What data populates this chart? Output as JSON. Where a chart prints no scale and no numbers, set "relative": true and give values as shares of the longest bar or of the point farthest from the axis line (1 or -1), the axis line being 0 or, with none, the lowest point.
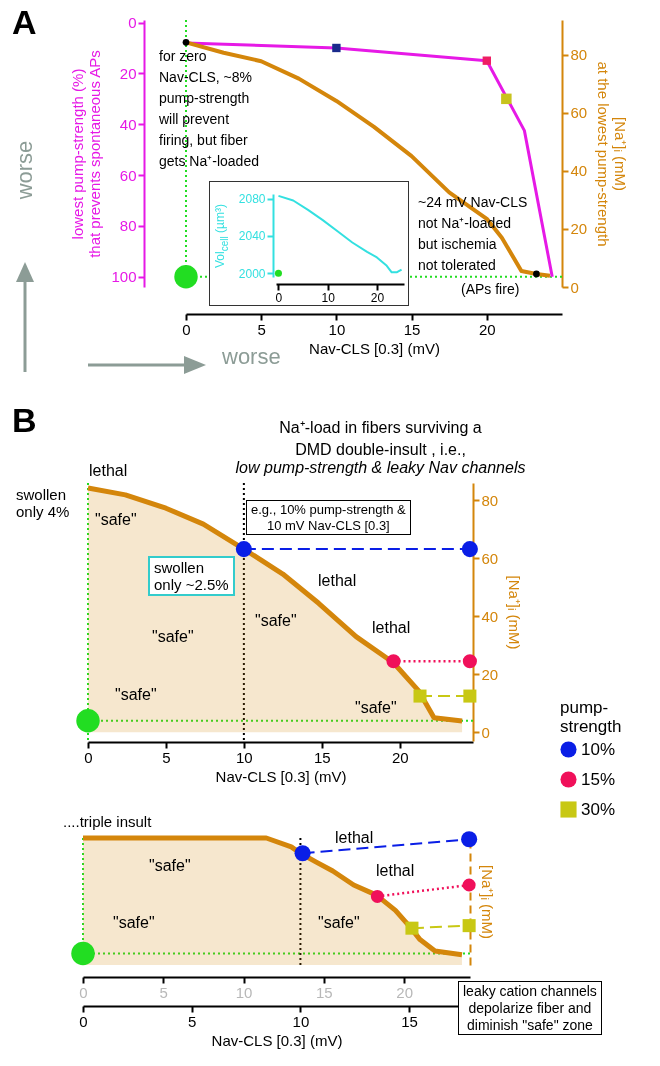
{
  "chart_data": [
    {
      "type": "line",
      "xlabel": "Nav-CLS [0.3] (mV)",
      "ylabel": "lowest pump-strength (%)\nthat prevents spontaneous APs",
      "y2label": "[Na⁺]ᵢ (mM)\nat the lowest pump-strength",
      "xlim": [
        0,
        25
      ],
      "xticks": [
        0,
        5,
        10,
        15,
        20
      ],
      "ylim": [
        104,
        -1
      ],
      "yticks": [
        0,
        20,
        40,
        60,
        80,
        100
      ],
      "y2lim": [
        0,
        92
      ],
      "y2ticks": [
        0,
        20,
        40,
        60,
        80
      ],
      "grid": false,
      "legend": false,
      "series": [
        {
          "color": "#e619e6",
          "axis": "y",
          "x": [
            0,
            10,
            20,
            22.5,
            24.35
          ],
          "values": [
            8,
            10,
            15,
            42.5,
            100
          ]
        },
        {
          "type": "scatter",
          "axis": "y",
          "x": [
            10
          ],
          "values": [
            10
          ],
          "color": "#1a2a8c",
          "marker": "square"
        },
        {
          "type": "scatter",
          "axis": "y",
          "x": [
            20
          ],
          "values": [
            15
          ],
          "color": "#ee1e64",
          "marker": "square"
        },
        {
          "type": "scatter",
          "axis": "y",
          "x": [
            21.3
          ],
          "values": [
            30
          ],
          "color": "#c8c31e",
          "marker": "square"
        },
        {
          "color": "#d4860b",
          "axis": "y2",
          "x": [
            0,
            2.5,
            5,
            7.5,
            10,
            12.5,
            15,
            17.5,
            20,
            21,
            22.3,
            23.3,
            24.2
          ],
          "values": [
            84.3,
            80.7,
            77.8,
            71.8,
            64.1,
            55.2,
            45.1,
            32.6,
            23.5,
            17,
            5.5,
            4.5,
            3.9
          ]
        },
        {
          "type": "scatter",
          "axis": "y2",
          "x": [
            0,
            23.3
          ],
          "values": [
            84.3,
            4.5
          ],
          "color": "#000000",
          "marker": "circle"
        },
        {
          "type": "scatter",
          "axis": "y",
          "x": [
            0
          ],
          "values": [
            100
          ],
          "color": "#22dd22",
          "marker": "circle"
        }
      ],
      "ref_lines": [
        {
          "axis": "x",
          "value": 0,
          "color": "#22dd22",
          "line_style": "dotted"
        },
        {
          "axis": "y",
          "value": 100,
          "color": "#22dd22",
          "line_style": "dotted"
        }
      ],
      "annotations": [
        "A",
        "for zero\nNav-CLS, ~8%\npump-strength\nwill prevent\nfiring, but fiber\ngets Na⁺-loaded",
        "~24 mV Nav-CLS\nnot Na⁺-loaded\nbut ischemia\nnot tolerated",
        "(APs fire)",
        "worse",
        "worse"
      ]
    },
    {
      "type": "line",
      "ylabel": "Vol$_{cell}$ (µm³)",
      "xlim": [
        -0.5,
        25.5
      ],
      "xticks": [
        0,
        10,
        20
      ],
      "ylim": [
        1996,
        2085
      ],
      "yticks": [
        2000,
        2040,
        2080
      ],
      "grid": false,
      "legend": false,
      "series": [
        {
          "color": "#33e0e0",
          "x": [
            0,
            3,
            6,
            9,
            12,
            15,
            18,
            20,
            22,
            23,
            24,
            25
          ],
          "values": [
            2083,
            2078,
            2068,
            2057,
            2045,
            2033,
            2023,
            2017,
            2008,
            2001,
            2001,
            2004
          ]
        },
        {
          "type": "scatter",
          "x": [
            0
          ],
          "values": [
            2000
          ],
          "color": "#22dd22",
          "marker": "circle"
        }
      ]
    },
    {
      "type": "line",
      "title": "Na⁺-load in fibers surviving a\nDMD double-insult , i.e.,",
      "subtitle": "low pump-strength & leaky Nav channels",
      "xlabel": "Nav-CLS [0.3] (mV)",
      "y2label": "[Na⁺]ᵢ (mM)",
      "xlim": [
        0,
        24.7
      ],
      "xticks": [
        0,
        5,
        10,
        15,
        20
      ],
      "y2lim": [
        -3,
        86
      ],
      "y2ticks": [
        0,
        20,
        40,
        60,
        80
      ],
      "grid": false,
      "legend": "bottom right",
      "legend_title": "pump-\nstrength",
      "series": [
        {
          "type": "area",
          "axis": "y2",
          "color": "#d4860b",
          "x": [
            0,
            2.4,
            5,
            7.4,
            10,
            12.5,
            14.8,
            17.2,
            19.6,
            21.2,
            22.2,
            24
          ],
          "values": [
            84.3,
            81.9,
            77.3,
            71.8,
            63.2,
            54.6,
            44.5,
            33,
            24,
            14.4,
            5,
            3.9
          ]
        },
        {
          "name": "10%",
          "axis": "y2",
          "color": "#0a1ee6",
          "x": [
            10,
            24.5
          ],
          "values": [
            63.2,
            63.2
          ],
          "marker": "circle",
          "line_style": "dashed"
        },
        {
          "name": "15%",
          "axis": "y2",
          "color": "#f0105a",
          "x": [
            19.6,
            24.5
          ],
          "values": [
            24.5,
            24.5
          ],
          "marker": "circle",
          "line_style": "dotted"
        },
        {
          "name": "30%",
          "axis": "y2",
          "color": "#c8c814",
          "x": [
            21.3,
            24.5
          ],
          "values": [
            12.5,
            12.5
          ],
          "marker": "square",
          "line_style": "dashed"
        },
        {
          "type": "scatter",
          "axis": "y2",
          "x": [
            0
          ],
          "values": [
            4
          ],
          "color": "#22dd22",
          "marker": "circle"
        }
      ],
      "ref_lines": [
        {
          "axis": "x",
          "value": 0,
          "color": "#22dd22",
          "line_style": "dotted"
        },
        {
          "axis": "y2",
          "value": 4,
          "color": "#22dd22",
          "line_style": "dotted"
        },
        {
          "axis": "x",
          "value": 10,
          "color": "#000000",
          "line_style": "dotted"
        }
      ],
      "annotations": [
        "B",
        "lethal",
        "swollen\nonly 4%",
        "\"safe\"",
        "swollen\nonly ~2.5%",
        "e.g., 10% pump-strength &\n10 mV Nav-CLS [0.3]",
        "\"safe\"",
        "\"safe\"",
        "lethal",
        "lethal",
        "\"safe\"",
        "\"safe\""
      ]
    },
    {
      "type": "line",
      "relative": true,
      "xlabel": "Nav-CLS [0.3] (mV)",
      "y2label": "[Na⁺]ᵢ (mM)",
      "xlim": [
        0,
        17.8
      ],
      "xticks": [
        0,
        5,
        10,
        15
      ],
      "x2lim": [
        0,
        24.1
      ],
      "x2ticks": [
        0,
        5,
        10,
        15,
        20
      ],
      "grid": false,
      "legend": false,
      "series": [
        {
          "type": "area",
          "axis": "y2",
          "color": "#d4860b",
          "x": [
            0,
            8.43,
            9.58,
            10,
            10.73,
            11.49,
            12.45,
            13.5,
            14.37,
            15.04,
            15.5,
            16.19,
            17.43
          ],
          "values": [
            1,
            1,
            0.93,
            0.88,
            0.81,
            0.74,
            0.63,
            0.55,
            0.43,
            0.3,
            0.2,
            0.11,
            0.08
          ]
        },
        {
          "axis": "y2",
          "color": "#0a1ee6",
          "x": [
            10.1,
            17.76
          ],
          "values": [
            0.88,
            0.99
          ],
          "marker": "circle",
          "line_style": "dashed"
        },
        {
          "axis": "y2",
          "color": "#f0105a",
          "x": [
            13.54,
            17.76
          ],
          "values": [
            0.54,
            0.63
          ],
          "marker": "circle",
          "line_style": "dotted"
        },
        {
          "axis": "y2",
          "color": "#c8c814",
          "x": [
            15.13,
            17.76
          ],
          "values": [
            0.29,
            0.31
          ],
          "marker": "square",
          "line_style": "dashed"
        },
        {
          "type": "scatter",
          "axis": "y2",
          "x": [
            0
          ],
          "values": [
            0.09
          ],
          "color": "#22dd22",
          "marker": "circle"
        }
      ],
      "ref_lines": [
        {
          "axis": "x",
          "value": 0,
          "color": "#22dd22",
          "line_style": "dotted"
        },
        {
          "axis": "y2",
          "value": 0.09,
          "color": "#22dd22",
          "line_style": "dotted"
        },
        {
          "axis": "x",
          "value": 10,
          "color": "#000000",
          "line_style": "dotted"
        }
      ],
      "annotations": [
        "....triple insult",
        "lethal",
        "lethal",
        "\"safe\"",
        "\"safe\"",
        "\"safe\"",
        "leaky cation channels\ndepolarize fiber and\ndiminish \"safe\" zone"
      ]
    }
  ]
}
